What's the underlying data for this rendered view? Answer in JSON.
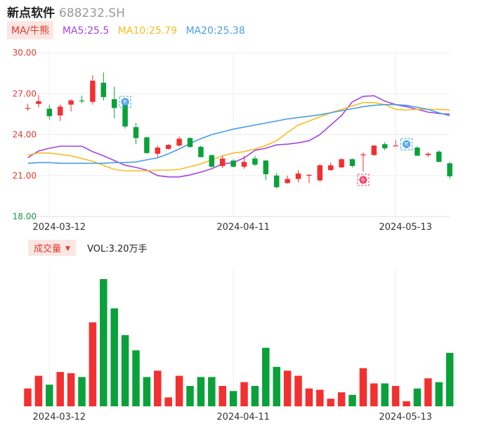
{
  "header": {
    "name": "新点软件",
    "code": "688232.SH"
  },
  "ma_legend": {
    "button": "MA/牛熊",
    "items": [
      {
        "label": "MA5:25.5",
        "color": "#a445e0"
      },
      {
        "label": "MA10:25.79",
        "color": "#f4be1f"
      },
      {
        "label": "MA20:25.38",
        "color": "#4a9ee8"
      }
    ]
  },
  "volume_legend": {
    "button": "成交量",
    "caret": "▼",
    "text": "VOL:3.20万手"
  },
  "colors": {
    "up": "#f23030",
    "down": "#0aa13b",
    "ma5": "#a445e0",
    "ma10": "#f4be1f",
    "ma20": "#4a9ee8",
    "grid": "#eeeeee",
    "axis_red": "#e23b2e",
    "axis_green": "#1a9b3e"
  },
  "markers": [
    {
      "label": "熊",
      "date_index": 9,
      "color": "#3b9be8"
    },
    {
      "label": "牛",
      "date_index": 31,
      "color": "#f2416b"
    },
    {
      "label": "熊",
      "date_index": 35,
      "color": "#3b9be8"
    }
  ],
  "chart_data": {
    "type": "candlestick",
    "y_ticks": [
      "30.00",
      "27.00",
      "24.00",
      "21.00",
      "18.00"
    ],
    "price_ylim": [
      18.0,
      30.0
    ],
    "x_tick_labels": [
      {
        "index": 2,
        "label": "2024-03-12"
      },
      {
        "index": 19,
        "label": "2024-04-11"
      },
      {
        "index": 34,
        "label": "2024-05-13"
      }
    ],
    "candles": [
      {
        "o": 25.95,
        "h": 26.25,
        "l": 25.75,
        "c": 25.95
      },
      {
        "o": 26.25,
        "h": 26.9,
        "l": 26.0,
        "c": 26.45
      },
      {
        "o": 25.9,
        "h": 26.2,
        "l": 25.1,
        "c": 25.35
      },
      {
        "o": 25.4,
        "h": 26.2,
        "l": 25.0,
        "c": 26.05
      },
      {
        "o": 26.2,
        "h": 26.6,
        "l": 25.7,
        "c": 26.5
      },
      {
        "o": 26.5,
        "h": 26.85,
        "l": 26.3,
        "c": 26.45
      },
      {
        "o": 26.4,
        "h": 28.35,
        "l": 26.2,
        "c": 27.95
      },
      {
        "o": 27.8,
        "h": 28.55,
        "l": 26.5,
        "c": 26.75
      },
      {
        "o": 26.6,
        "h": 27.5,
        "l": 25.2,
        "c": 25.95
      },
      {
        "o": 26.45,
        "h": 26.5,
        "l": 24.45,
        "c": 24.6
      },
      {
        "o": 24.55,
        "h": 24.85,
        "l": 23.3,
        "c": 23.75
      },
      {
        "o": 23.8,
        "h": 23.85,
        "l": 22.6,
        "c": 22.65
      },
      {
        "o": 22.6,
        "h": 23.2,
        "l": 22.35,
        "c": 23.05
      },
      {
        "o": 22.95,
        "h": 23.3,
        "l": 22.9,
        "c": 23.25
      },
      {
        "o": 23.2,
        "h": 23.85,
        "l": 23.1,
        "c": 23.7
      },
      {
        "o": 23.75,
        "h": 23.8,
        "l": 23.05,
        "c": 23.1
      },
      {
        "o": 23.1,
        "h": 23.2,
        "l": 22.35,
        "c": 22.35
      },
      {
        "o": 22.5,
        "h": 22.5,
        "l": 21.6,
        "c": 21.65
      },
      {
        "o": 21.7,
        "h": 22.45,
        "l": 21.55,
        "c": 22.25
      },
      {
        "o": 22.1,
        "h": 22.2,
        "l": 21.6,
        "c": 21.65
      },
      {
        "o": 21.65,
        "h": 22.45,
        "l": 21.5,
        "c": 22.0
      },
      {
        "o": 22.25,
        "h": 22.45,
        "l": 21.7,
        "c": 21.8
      },
      {
        "o": 22.1,
        "h": 22.15,
        "l": 20.65,
        "c": 21.1
      },
      {
        "o": 21.0,
        "h": 21.2,
        "l": 20.05,
        "c": 20.15
      },
      {
        "o": 20.45,
        "h": 21.0,
        "l": 20.4,
        "c": 20.75
      },
      {
        "o": 20.75,
        "h": 21.4,
        "l": 20.5,
        "c": 21.15
      },
      {
        "o": 21.0,
        "h": 21.1,
        "l": 20.45,
        "c": 21.05
      },
      {
        "o": 20.65,
        "h": 21.85,
        "l": 20.55,
        "c": 21.75
      },
      {
        "o": 21.4,
        "h": 21.95,
        "l": 21.35,
        "c": 21.75
      },
      {
        "o": 21.6,
        "h": 22.25,
        "l": 21.55,
        "c": 22.2
      },
      {
        "o": 22.2,
        "h": 22.25,
        "l": 21.6,
        "c": 21.7
      },
      {
        "o": 22.55,
        "h": 22.7,
        "l": 21.3,
        "c": 22.55
      },
      {
        "o": 22.5,
        "h": 23.2,
        "l": 22.45,
        "c": 23.2
      },
      {
        "o": 23.3,
        "h": 23.45,
        "l": 22.85,
        "c": 23.0
      },
      {
        "o": 23.2,
        "h": 23.6,
        "l": 23.15,
        "c": 23.2
      },
      {
        "o": 23.15,
        "h": 23.4,
        "l": 23.0,
        "c": 23.3
      },
      {
        "o": 23.05,
        "h": 23.15,
        "l": 22.45,
        "c": 22.45
      },
      {
        "o": 22.5,
        "h": 22.7,
        "l": 22.35,
        "c": 22.6
      },
      {
        "o": 22.75,
        "h": 22.85,
        "l": 22.0,
        "c": 22.0
      },
      {
        "o": 21.9,
        "h": 22.0,
        "l": 20.75,
        "c": 20.95
      }
    ],
    "volume_ylim": [
      0,
      100
    ],
    "volumes": [
      14,
      24,
      17,
      27,
      26,
      23,
      66,
      100,
      77,
      56,
      44,
      23,
      28,
      7,
      24,
      16,
      23,
      23,
      16,
      12,
      19,
      16,
      46,
      31,
      28,
      24,
      14,
      13,
      6,
      11,
      9,
      30,
      18,
      18,
      16,
      4,
      14,
      22,
      19,
      42
    ],
    "series": [
      {
        "name": "MA5",
        "color": "#a445e0",
        "values": [
          22.3,
          22.8,
          23.0,
          23.15,
          23.15,
          23.15,
          22.75,
          22.45,
          22.1,
          21.75,
          21.6,
          21.4,
          21.0,
          20.9,
          20.9,
          21.05,
          21.25,
          21.5,
          21.85,
          21.95,
          22.3,
          22.85,
          23.0,
          23.25,
          23.3,
          23.4,
          23.55,
          24.0,
          24.7,
          25.4,
          26.4,
          26.8,
          26.85,
          26.45,
          26.2,
          26.05,
          25.85,
          25.65,
          25.55,
          25.5
        ]
      },
      {
        "name": "MA10",
        "color": "#f4be1f",
        "values": [
          22.5,
          22.65,
          22.65,
          22.55,
          22.45,
          22.25,
          22.05,
          21.75,
          21.45,
          21.35,
          21.35,
          21.35,
          21.4,
          21.4,
          21.45,
          21.65,
          21.85,
          22.15,
          22.45,
          22.65,
          22.75,
          22.95,
          23.2,
          23.55,
          24.15,
          24.7,
          25.0,
          25.3,
          25.6,
          25.85,
          26.1,
          26.35,
          26.35,
          26.2,
          25.85,
          25.8,
          25.85,
          25.85,
          25.85,
          25.79
        ]
      },
      {
        "name": "MA20",
        "color": "#4a9ee8",
        "values": [
          21.9,
          21.95,
          21.95,
          21.9,
          21.9,
          21.9,
          21.9,
          21.9,
          21.95,
          21.95,
          22.0,
          22.15,
          22.3,
          22.6,
          22.95,
          23.35,
          23.7,
          24.0,
          24.2,
          24.4,
          24.55,
          24.7,
          24.85,
          25.0,
          25.15,
          25.25,
          25.35,
          25.45,
          25.6,
          25.75,
          25.9,
          26.05,
          26.15,
          26.2,
          26.2,
          26.15,
          26.0,
          25.85,
          25.6,
          25.38
        ]
      }
    ]
  }
}
